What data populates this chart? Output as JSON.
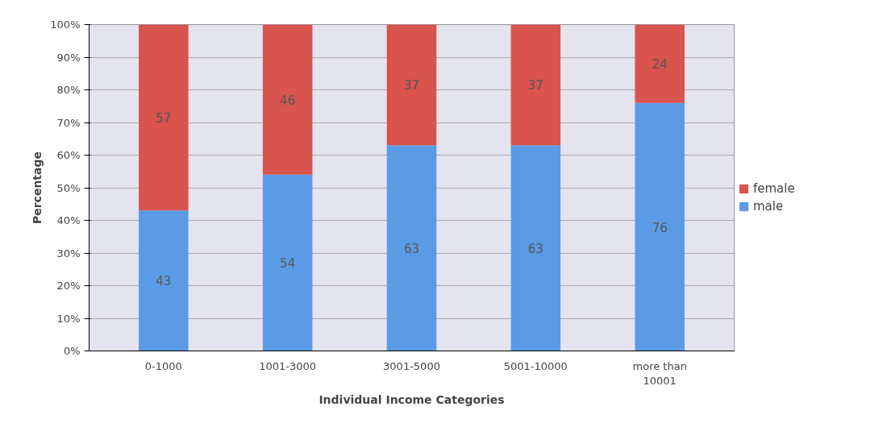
{
  "chart_data": {
    "type": "bar",
    "stacked": true,
    "xlabel": "Individual Income Categories",
    "ylabel": "Percentage",
    "categories": [
      "0-1000",
      "1001-3000",
      "3001-5000",
      "5001-10000",
      "more than\n10001"
    ],
    "series": [
      {
        "name": "male",
        "color": "#5b9be6",
        "values": [
          43,
          54,
          63,
          63,
          76
        ]
      },
      {
        "name": "female",
        "color": "#d9534f",
        "values": [
          57,
          46,
          37,
          37,
          24
        ]
      }
    ],
    "ylim": [
      0,
      100
    ],
    "yticks": [
      {
        "value": 0,
        "label": "0%"
      },
      {
        "value": 10,
        "label": "10%"
      },
      {
        "value": 20,
        "label": "20%"
      },
      {
        "value": 30,
        "label": "30%"
      },
      {
        "value": 40,
        "label": "40%"
      },
      {
        "value": 50,
        "label": "50%"
      },
      {
        "value": 60,
        "label": "60%"
      },
      {
        "value": 70,
        "label": "70%"
      },
      {
        "value": 80,
        "label": "80%"
      },
      {
        "value": 90,
        "label": "90%"
      },
      {
        "value": 100,
        "label": "100%"
      }
    ],
    "grid": "y",
    "legend": "right",
    "data_labels": true
  }
}
